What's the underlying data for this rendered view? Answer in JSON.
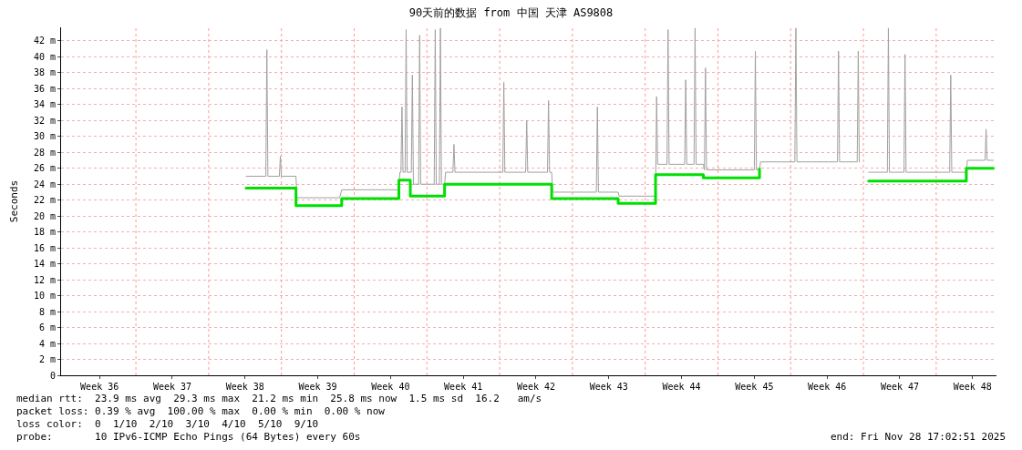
{
  "chart_data": {
    "type": "line",
    "title": "90天前的数据 from 中国 天津 AS9808",
    "ylabel": "Seconds",
    "xlim": [
      "2025-08-31T19:12",
      "2025-11-29T19:12"
    ],
    "ylim": [
      0,
      43.7
    ],
    "xticks": [
      {
        "value": "2025-09-04T12:00",
        "label": "Week 36"
      },
      {
        "value": "2025-09-11T12:00",
        "label": "Week 37"
      },
      {
        "value": "2025-09-18T12:00",
        "label": "Week 38"
      },
      {
        "value": "2025-09-25T12:00",
        "label": "Week 39"
      },
      {
        "value": "2025-10-02T12:00",
        "label": "Week 40"
      },
      {
        "value": "2025-10-09T12:00",
        "label": "Week 41"
      },
      {
        "value": "2025-10-16T12:00",
        "label": "Week 42"
      },
      {
        "value": "2025-10-23T12:00",
        "label": "Week 43"
      },
      {
        "value": "2025-10-30T12:00",
        "label": "Week 44"
      },
      {
        "value": "2025-11-06T12:00",
        "label": "Week 45"
      },
      {
        "value": "2025-11-13T12:00",
        "label": "Week 46"
      },
      {
        "value": "2025-11-20T12:00",
        "label": "Week 47"
      },
      {
        "value": "2025-11-27T12:00",
        "label": "Week 48"
      }
    ],
    "yticks": [
      0,
      {
        "value": 2,
        "label": "2 m"
      },
      {
        "value": 4,
        "label": "4 m"
      },
      {
        "value": 6,
        "label": "6 m"
      },
      {
        "value": 8,
        "label": "8 m"
      },
      {
        "value": 10,
        "label": "10 m"
      },
      {
        "value": 12,
        "label": "12 m"
      },
      {
        "value": 14,
        "label": "14 m"
      },
      {
        "value": 16,
        "label": "16 m"
      },
      {
        "value": 18,
        "label": "18 m"
      },
      {
        "value": 20,
        "label": "20 m"
      },
      {
        "value": 22,
        "label": "22 m"
      },
      {
        "value": 24,
        "label": "24 m"
      },
      {
        "value": 26,
        "label": "26 m"
      },
      {
        "value": 28,
        "label": "28 m"
      },
      {
        "value": 30,
        "label": "30 m"
      },
      {
        "value": 32,
        "label": "32 m"
      },
      {
        "value": 34,
        "label": "34 m"
      },
      {
        "value": 36,
        "label": "36 m"
      },
      {
        "value": 38,
        "label": "38 m"
      },
      {
        "value": 40,
        "label": "40 m"
      },
      {
        "value": 42,
        "label": "42 m"
      }
    ],
    "grid": "y",
    "marker": "none",
    "series": [
      {
        "color": "#a0a0a0",
        "x": [
          "2025-09-18T14:24",
          "2025-09-20T12:00",
          "2025-09-20T14:24",
          "2025-09-20T16:48",
          "2025-09-21T19:12",
          "2025-09-21T21:36",
          "2025-09-22T00:00",
          "2025-09-23T09:36",
          "2025-09-23T12:00",
          "2025-09-27T14:24",
          "2025-09-27T19:12",
          "2025-10-03T07:12",
          "2025-10-03T09:36",
          "2025-10-03T12:00",
          "2025-10-03T14:24",
          "2025-10-03T16:48",
          "2025-10-03T21:36",
          "2025-10-04T00:00",
          "2025-10-04T02:24",
          "2025-10-04T12:00",
          "2025-10-04T14:24",
          "2025-10-04T16:48",
          "2025-10-05T04:48",
          "2025-10-05T07:12",
          "2025-10-05T09:36",
          "2025-10-06T16:48",
          "2025-10-06T19:12",
          "2025-10-06T21:36",
          "2025-10-07T04:48",
          "2025-10-07T07:12",
          "2025-10-07T09:36",
          "2025-10-07T16:48",
          "2025-10-07T19:12",
          "2025-10-08T12:00",
          "2025-10-08T14:24",
          "2025-10-08T16:48",
          "2025-10-13T07:12",
          "2025-10-13T09:36",
          "2025-10-13T12:00",
          "2025-10-15T12:00",
          "2025-10-15T14:24",
          "2025-10-15T16:48",
          "2025-10-17T14:24",
          "2025-10-17T16:48",
          "2025-10-17T19:12",
          "2025-10-18T00:00",
          "2025-10-18T02:24",
          "2025-10-22T07:12",
          "2025-10-22T09:36",
          "2025-10-22T12:00",
          "2025-10-24T09:36",
          "2025-10-24T12:00",
          "2025-10-28T00:00",
          "2025-10-28T02:24",
          "2025-10-28T04:48",
          "2025-10-29T02:24",
          "2025-10-29T04:48",
          "2025-10-29T07:12",
          "2025-10-30T19:12",
          "2025-10-30T21:36",
          "2025-10-31T00:00",
          "2025-10-31T16:48",
          "2025-10-31T19:12",
          "2025-10-31T21:36",
          "2025-11-01T14:24",
          "2025-11-01T16:48",
          "2025-11-01T19:12",
          "2025-11-01T21:36",
          "2025-11-06T12:00",
          "2025-11-06T14:24",
          "2025-11-06T16:48",
          "2025-11-07T00:00",
          "2025-11-07T02:24",
          "2025-11-10T09:36",
          "2025-11-10T12:00",
          "2025-11-10T14:24",
          "2025-11-14T12:00",
          "2025-11-14T14:24",
          "2025-11-14T16:48",
          "2025-11-16T09:36",
          "2025-11-16T12:00",
          "2025-11-16T14:24",
          "2025-11-17T00:00",
          "2025-11-17T12:00",
          "2025-11-19T07:12",
          "2025-11-19T09:36",
          "2025-11-19T12:00",
          "2025-11-20T21:36",
          "2025-11-21T00:00",
          "2025-11-21T02:24",
          "2025-11-25T07:12",
          "2025-11-25T09:36",
          "2025-11-25T12:00",
          "2025-11-26T21:36",
          "2025-11-27T00:00",
          "2025-11-28T16:48",
          "2025-11-28T19:12",
          "2025-11-28T21:36",
          "2025-11-29T12:00"
        ],
        "values": [
          25,
          25,
          40.9,
          25,
          25,
          27.5,
          25,
          25,
          22.3,
          22.3,
          23.3,
          23.3,
          25.5,
          25.5,
          33.7,
          25.5,
          25.5,
          43.4,
          25.5,
          25.5,
          37.7,
          24,
          24,
          42.7,
          24,
          24,
          43.4,
          24,
          24,
          43.6,
          24,
          24,
          25.5,
          25.5,
          29,
          25.5,
          25.5,
          36.8,
          25.5,
          25.5,
          32,
          25.5,
          25.5,
          34.5,
          25.5,
          25.5,
          23,
          23,
          33.7,
          23,
          23,
          22.5,
          22.5,
          35,
          26.5,
          26.5,
          43.4,
          26.5,
          26.5,
          37.1,
          26.5,
          26.5,
          43.6,
          26.5,
          26.5,
          25.8,
          38.6,
          25.8,
          25.8,
          40.7,
          25.8,
          25.8,
          26.8,
          26.8,
          43.6,
          26.8,
          26.8,
          40.7,
          26.8,
          26.8,
          40.7,
          26.8,
          null,
          25.5,
          25.5,
          43.6,
          25.5,
          25.5,
          40.3,
          25.5,
          25.5,
          37.7,
          25.5,
          25.5,
          27,
          27,
          30.9,
          27,
          27
        ]
      },
      {
        "type": "step",
        "color": "#00e000",
        "x": [
          "2025-09-18T14:24",
          "2025-09-23T09:36",
          "2025-09-27T19:12",
          "2025-10-03T07:12",
          "2025-10-04T09:36",
          "2025-10-07T16:48",
          "2025-10-18T00:00",
          "2025-10-24T09:36",
          "2025-10-28T00:00",
          "2025-11-01T14:24",
          "2025-11-07T00:00",
          "2025-11-16T14:24",
          "2025-11-17T12:00",
          "2025-11-26T21:36",
          "2025-11-29T12:00"
        ],
        "values": [
          23.5,
          21.3,
          22.2,
          24.5,
          22.5,
          24.0,
          22.2,
          21.6,
          25.2,
          24.8,
          25.9,
          null,
          24.4,
          26.0,
          26.0
        ]
      }
    ],
    "ref_lines": [
      {
        "axis": "x",
        "value": "2025-09-08",
        "color": "#ff9999",
        "line_style": "dotted"
      },
      {
        "axis": "x",
        "value": "2025-09-15",
        "color": "#ff9999",
        "line_style": "dotted"
      },
      {
        "axis": "x",
        "value": "2025-09-22",
        "color": "#ff9999",
        "line_style": "dotted"
      },
      {
        "axis": "x",
        "value": "2025-09-29",
        "color": "#ff9999",
        "line_style": "dotted"
      },
      {
        "axis": "x",
        "value": "2025-10-06",
        "color": "#ff9999",
        "line_style": "dotted"
      },
      {
        "axis": "x",
        "value": "2025-10-13",
        "color": "#ff9999",
        "line_style": "dotted"
      },
      {
        "axis": "x",
        "value": "2025-10-20",
        "color": "#ff9999",
        "line_style": "dotted"
      },
      {
        "axis": "x",
        "value": "2025-10-27",
        "color": "#ff9999",
        "line_style": "dotted"
      },
      {
        "axis": "x",
        "value": "2025-11-03",
        "color": "#ff9999",
        "line_style": "dotted"
      },
      {
        "axis": "x",
        "value": "2025-11-10",
        "color": "#ff9999",
        "line_style": "dotted"
      },
      {
        "axis": "x",
        "value": "2025-11-17",
        "color": "#ff9999",
        "line_style": "dotted"
      },
      {
        "axis": "x",
        "value": "2025-11-24",
        "color": "#ff9999",
        "line_style": "dotted"
      }
    ],
    "annotations": [
      "median rtt:  23.9 ms avg  29.3 ms max  21.2 ms min  25.8 ms now  1.5 ms sd  16.2   am/s",
      "packet loss: 0.39 % avg  100.00 % max  0.00 % min  0.00 % now",
      "loss color:  0  1/10  2/10  3/10  4/10  5/10  9/10",
      "probe:       10 IPv6-ICMP Echo Pings (64 Bytes) every 60s",
      "end: Fri Nov 28 17:02:51 2025"
    ]
  }
}
